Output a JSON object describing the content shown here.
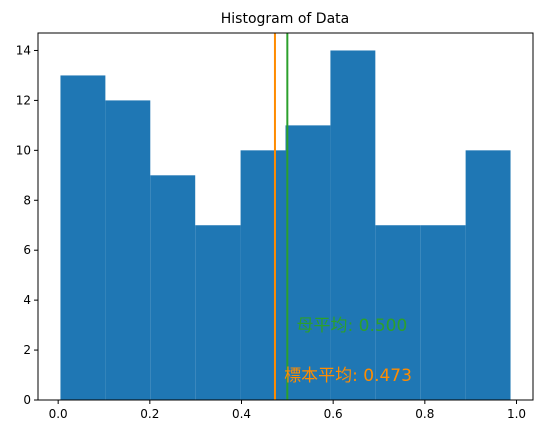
{
  "chart_data": {
    "type": "bar",
    "title": "Histogram of Data",
    "xlabel": "",
    "ylabel": "",
    "bins": [
      {
        "x0": 0.005,
        "x1": 0.103,
        "count": 13
      },
      {
        "x0": 0.103,
        "x1": 0.201,
        "count": 12
      },
      {
        "x0": 0.201,
        "x1": 0.299,
        "count": 9
      },
      {
        "x0": 0.299,
        "x1": 0.398,
        "count": 7
      },
      {
        "x0": 0.398,
        "x1": 0.496,
        "count": 10
      },
      {
        "x0": 0.496,
        "x1": 0.594,
        "count": 11
      },
      {
        "x0": 0.594,
        "x1": 0.692,
        "count": 14
      },
      {
        "x0": 0.692,
        "x1": 0.79,
        "count": 7
      },
      {
        "x0": 0.79,
        "x1": 0.889,
        "count": 7
      },
      {
        "x0": 0.889,
        "x1": 0.987,
        "count": 10
      }
    ],
    "xlim": [
      -0.044,
      1.036
    ],
    "ylim": [
      0,
      14.7
    ],
    "xticks": [
      0.0,
      0.2,
      0.4,
      0.6,
      0.8,
      1.0
    ],
    "xtick_labels": [
      "0.0",
      "0.2",
      "0.4",
      "0.6",
      "0.8",
      "1.0"
    ],
    "yticks": [
      0,
      2,
      4,
      6,
      8,
      10,
      12,
      14
    ],
    "ytick_labels": [
      "0",
      "2",
      "4",
      "6",
      "8",
      "10",
      "12",
      "14"
    ],
    "vlines": [
      {
        "x": 0.473,
        "color": "#ff8c00"
      },
      {
        "x": 0.5,
        "color": "#2ca02c"
      }
    ],
    "annotations": [
      {
        "text": "母平均: 0.500",
        "x": 0.52,
        "y": 3.0,
        "color": "#2ca02c"
      },
      {
        "text": "標本平均: 0.473",
        "x": 0.493,
        "y": 1.0,
        "color": "#ff8c00"
      }
    ],
    "bar_color": "#1f77b4",
    "grid": false,
    "legend": "none"
  }
}
